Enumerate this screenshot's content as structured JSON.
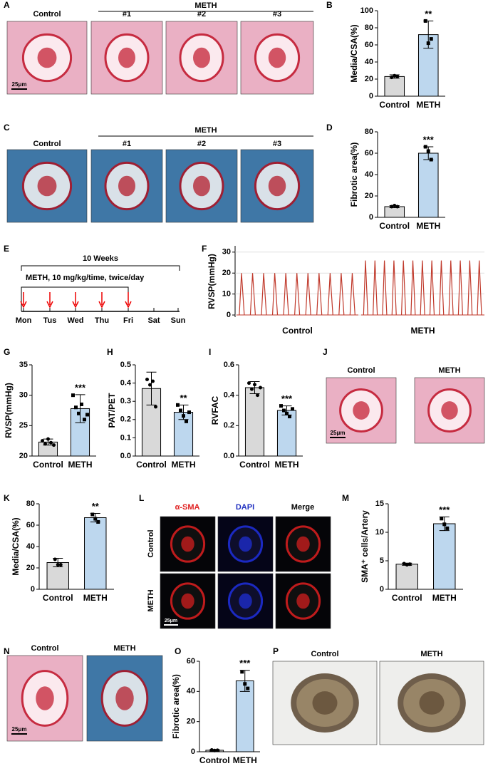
{
  "panel_letters": [
    "A",
    "B",
    "C",
    "D",
    "E",
    "F",
    "G",
    "H",
    "I",
    "J",
    "K",
    "L",
    "M",
    "N",
    "O",
    "P"
  ],
  "images": {
    "A": {
      "group": "METH",
      "labels": [
        "Control",
        "#1",
        "#2",
        "#3"
      ],
      "scale": "25μm"
    },
    "C": {
      "group": "METH",
      "labels": [
        "Control",
        "#1",
        "#2",
        "#3"
      ]
    },
    "J": {
      "labels": [
        "Control",
        "METH"
      ],
      "scale": "25μm"
    },
    "L": {
      "columns": [
        "α-SMA",
        "DAPI",
        "Merge"
      ],
      "rows": [
        "Control",
        "METH"
      ],
      "scale": "25μm"
    },
    "N": {
      "labels": [
        "Control",
        "METH"
      ],
      "scale": "25μm"
    },
    "P": {
      "labels": [
        "Control",
        "METH"
      ]
    }
  },
  "timeline": {
    "title": "10 Weeks",
    "treatment": "METH, 10 mg/kg/time, twice/day",
    "days": [
      "Mon",
      "Tus",
      "Wed",
      "Thu",
      "Fri",
      "Sat",
      "Sun"
    ]
  },
  "chart_data": [
    {
      "type": "bar",
      "ylabel": "Media/CSA(%)",
      "categories": [
        "Control",
        "METH"
      ],
      "values": [
        23,
        72
      ],
      "errors": [
        2,
        16
      ],
      "points": [
        [
          22,
          24,
          23
        ],
        [
          88,
          62,
          67
        ]
      ],
      "annotation": "**",
      "colors": [
        "#d9d9d9",
        "#bdd7ee"
      ],
      "ylim": [
        0,
        100
      ],
      "yticks": [
        0,
        20,
        40,
        60,
        80,
        100
      ]
    },
    {
      "type": "bar",
      "ylabel": "Fibrotic area(%)",
      "categories": [
        "Control",
        "METH"
      ],
      "values": [
        10,
        60
      ],
      "errors": [
        1,
        6
      ],
      "points": [
        [
          10,
          11,
          10
        ],
        [
          66,
          62,
          54
        ]
      ],
      "annotation": "***",
      "colors": [
        "#d9d9d9",
        "#bdd7ee"
      ],
      "ylim": [
        0,
        80
      ],
      "yticks": [
        0,
        20,
        40,
        60,
        80
      ]
    },
    {
      "type": "bar",
      "ylabel": "RVSP(mmHg)",
      "categories": [
        "Control",
        "METH"
      ],
      "values": [
        22.3,
        27.8
      ],
      "errors": [
        0.5,
        2.3
      ],
      "points": [
        [
          22.5,
          22,
          22.8,
          22.2,
          21.8
        ],
        [
          30,
          28,
          27,
          28.5,
          26,
          26.8
        ]
      ],
      "annotation": "***",
      "colors": [
        "#d9d9d9",
        "#bdd7ee"
      ],
      "ylim": [
        20,
        35
      ],
      "yticks": [
        20,
        25,
        30,
        35
      ]
    },
    {
      "type": "bar",
      "ylabel": "PAT/PET",
      "categories": [
        "Control",
        "METH"
      ],
      "values": [
        0.37,
        0.24
      ],
      "errors": [
        0.09,
        0.04
      ],
      "points": [
        [
          0.42,
          0.39,
          0.41,
          0.27
        ],
        [
          0.28,
          0.25,
          0.22,
          0.19,
          0.24
        ]
      ],
      "annotation": "**",
      "colors": [
        "#d9d9d9",
        "#bdd7ee"
      ],
      "ylim": [
        0,
        0.5
      ],
      "yticks": [
        {
          "value": 0,
          "label": "0.0"
        },
        0.1,
        0.2,
        0.3,
        0.4,
        0.5
      ]
    },
    {
      "type": "bar",
      "ylabel": "RVFAC",
      "categories": [
        "Control",
        "METH"
      ],
      "values": [
        0.45,
        0.3
      ],
      "errors": [
        0.04,
        0.03
      ],
      "points": [
        [
          0.48,
          0.44,
          0.47,
          0.4,
          0.45
        ],
        [
          0.33,
          0.3,
          0.28,
          0.26,
          0.31
        ]
      ],
      "annotation": "***",
      "colors": [
        "#d9d9d9",
        "#bdd7ee"
      ],
      "ylim": [
        0,
        0.6
      ],
      "yticks": [
        {
          "value": 0,
          "label": "0.0"
        },
        0.2,
        0.4,
        0.6
      ]
    },
    {
      "type": "bar",
      "ylabel": "Media/CSA(%)",
      "categories": [
        "Control",
        "METH"
      ],
      "values": [
        25,
        67
      ],
      "errors": [
        4,
        4
      ],
      "points": [
        [
          28,
          23,
          23
        ],
        [
          70,
          66,
          63
        ]
      ],
      "annotation": "**",
      "colors": [
        "#d9d9d9",
        "#bdd7ee"
      ],
      "ylim": [
        0,
        80
      ],
      "yticks": [
        0,
        20,
        40,
        60,
        80
      ]
    },
    {
      "type": "bar",
      "ylabel": "SMA⁺ cells/Artery",
      "categories": [
        "Control",
        "METH"
      ],
      "values": [
        4.4,
        11.5
      ],
      "errors": [
        0.2,
        1.2
      ],
      "points": [
        [
          4.5,
          4.3,
          4.4
        ],
        [
          12.4,
          11.4,
          10.7
        ]
      ],
      "annotation": "***",
      "colors": [
        "#d9d9d9",
        "#bdd7ee"
      ],
      "ylim": [
        0,
        15
      ],
      "yticks": [
        0,
        5,
        10,
        15
      ]
    },
    {
      "type": "bar",
      "ylabel": "Fibrotic area(%)",
      "categories": [
        "Control",
        "METH"
      ],
      "values": [
        1,
        47
      ],
      "errors": [
        0.5,
        7
      ],
      "points": [
        [
          1.2,
          0.8,
          1
        ],
        [
          53,
          45,
          42
        ]
      ],
      "annotation": "***",
      "colors": [
        "#d9d9d9",
        "#bdd7ee"
      ],
      "ylim": [
        0,
        60
      ],
      "yticks": [
        0,
        20,
        40,
        60
      ]
    },
    {
      "type": "trace",
      "ylabel": "RVSP(mmHg)",
      "color": "#c0392b",
      "series": [
        {
          "name": "Control",
          "values": [
            20,
            20,
            20,
            20,
            20,
            20,
            20,
            20,
            20,
            20,
            20
          ]
        },
        {
          "name": "METH",
          "values": [
            26,
            26,
            26,
            26,
            26,
            26,
            26,
            26,
            26,
            26,
            26,
            26,
            26
          ]
        }
      ],
      "ylim": [
        -1,
        33
      ],
      "yticks": [
        0,
        10,
        20,
        30
      ],
      "grid": true
    }
  ]
}
